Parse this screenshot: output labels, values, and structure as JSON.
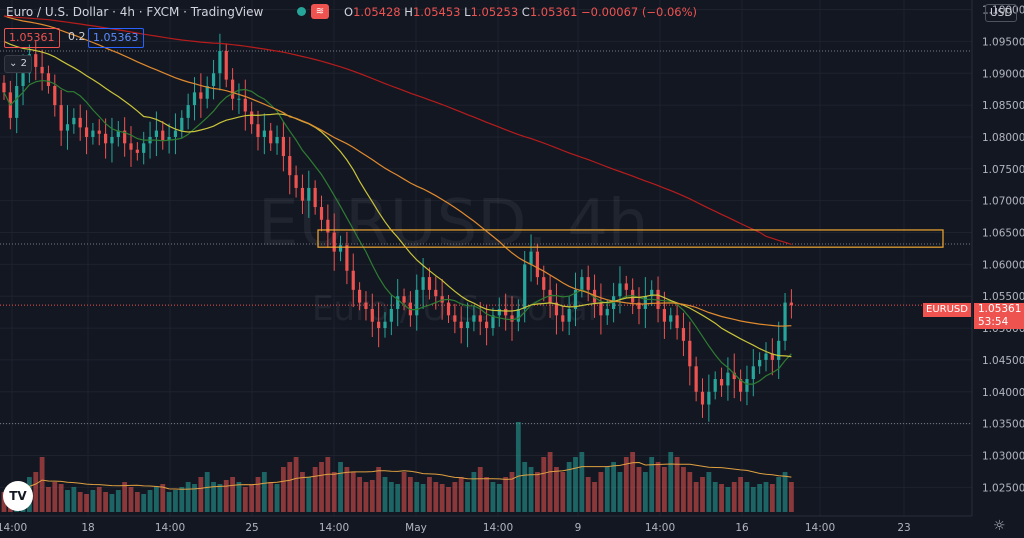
{
  "header": {
    "title": "Euro / U.S. Dollar · 4h · FXCM · TradingView",
    "ohlc": {
      "open_label": "O",
      "open": "1.05428",
      "high_label": "H",
      "high": "1.05453",
      "low_label": "L",
      "low": "1.05253",
      "close_label": "C",
      "close": "1.05361",
      "change": "−0.00067 (−0.06%)"
    }
  },
  "trade": {
    "sell": "1.05361",
    "spread": "0.2",
    "buy": "1.05363"
  },
  "indicators_toggle": "2",
  "currency_button": "USD",
  "watermark": {
    "symbol": "EURUSD, 4h",
    "name": "Euro / U.S. Dollar"
  },
  "last_price": {
    "symbol": "EURUSD",
    "price": "1.05361",
    "countdown": "53:54"
  },
  "logo": "TV",
  "settings_icon": "☼",
  "colors": {
    "background": "#131722",
    "up": "#26a69a",
    "down": "#ef5350",
    "ma_fast": "#2e7d32",
    "ma_mid": "#c9c43a",
    "ma_slow": "#e08a2e",
    "ma_long": "#b71c1c",
    "zone": "#f0a830",
    "volume_ma": "#e0a040"
  },
  "chart_data": {
    "type": "candlestick",
    "x_tick_labels": [
      "14:00",
      "18",
      "14:00",
      "25",
      "14:00",
      "May",
      "14:00",
      "9",
      "14:00",
      "16",
      "14:00",
      "23"
    ],
    "y_tick_labels": [
      "1.10000",
      "1.09500",
      "1.09000",
      "1.08500",
      "1.08000",
      "1.07500",
      "1.07000",
      "1.06500",
      "1.06000",
      "1.05500",
      "1.05000",
      "1.04500",
      "1.04000",
      "1.03500",
      "1.03000",
      "1.02500"
    ],
    "ylim": [
      1.0205,
      1.1015
    ],
    "resistance_zone": {
      "from": 1.0627,
      "to": 1.0654
    },
    "horizontal_levels": [
      1.0935,
      1.0632,
      1.0536,
      1.035
    ],
    "closes": [
      1.087,
      1.083,
      1.088,
      1.09,
      1.093,
      1.091,
      1.09,
      1.088,
      1.085,
      1.081,
      1.082,
      1.083,
      1.0815,
      1.08,
      1.081,
      1.0805,
      1.079,
      1.08,
      1.081,
      1.079,
      1.078,
      1.0775,
      1.079,
      1.08,
      1.081,
      1.0795,
      1.08,
      1.081,
      1.083,
      1.085,
      1.087,
      1.086,
      1.088,
      1.09,
      1.0935,
      1.089,
      1.086,
      1.086,
      1.084,
      1.082,
      1.08,
      1.081,
      1.079,
      1.08,
      1.077,
      1.074,
      1.072,
      1.07,
      1.072,
      1.069,
      1.067,
      1.065,
      1.062,
      1.063,
      1.059,
      1.056,
      1.054,
      1.053,
      1.051,
      1.05,
      1.051,
      1.053,
      1.055,
      1.054,
      1.052,
      1.056,
      1.058,
      1.056,
      1.055,
      1.054,
      1.052,
      1.051,
      1.05,
      1.051,
      1.052,
      1.051,
      1.05,
      1.052,
      1.053,
      1.052,
      1.051,
      1.053,
      1.06,
      1.062,
      1.058,
      1.056,
      1.054,
      1.052,
      1.051,
      1.053,
      1.056,
      1.058,
      1.056,
      1.054,
      1.052,
      1.053,
      1.055,
      1.057,
      1.056,
      1.054,
      1.053,
      1.055,
      1.056,
      1.053,
      1.051,
      1.052,
      1.05,
      1.048,
      1.044,
      1.04,
      1.038,
      1.04,
      1.042,
      1.041,
      1.043,
      1.042,
      1.04,
      1.042,
      1.044,
      1.045,
      1.046,
      1.045,
      1.048,
      1.054,
      1.0536
    ],
    "volume": [
      20,
      18,
      30,
      25,
      35,
      40,
      55,
      25,
      30,
      28,
      22,
      25,
      20,
      18,
      22,
      25,
      20,
      18,
      22,
      30,
      25,
      20,
      18,
      22,
      25,
      28,
      20,
      22,
      25,
      30,
      28,
      35,
      40,
      30,
      28,
      32,
      35,
      30,
      25,
      28,
      35,
      40,
      30,
      28,
      45,
      50,
      55,
      40,
      35,
      45,
      50,
      55,
      40,
      50,
      45,
      40,
      35,
      30,
      32,
      45,
      35,
      30,
      28,
      40,
      35,
      30,
      28,
      35,
      30,
      28,
      25,
      30,
      35,
      30,
      40,
      45,
      35,
      30,
      28,
      35,
      40,
      90,
      50,
      45,
      40,
      55,
      60,
      45,
      40,
      50,
      55,
      60,
      35,
      30,
      40,
      45,
      50,
      40,
      55,
      60,
      45,
      40,
      55,
      50,
      45,
      60,
      55,
      45,
      40,
      30,
      35,
      40,
      30,
      28,
      25,
      30,
      35,
      30,
      25,
      28,
      30,
      28,
      35,
      40,
      30
    ]
  }
}
